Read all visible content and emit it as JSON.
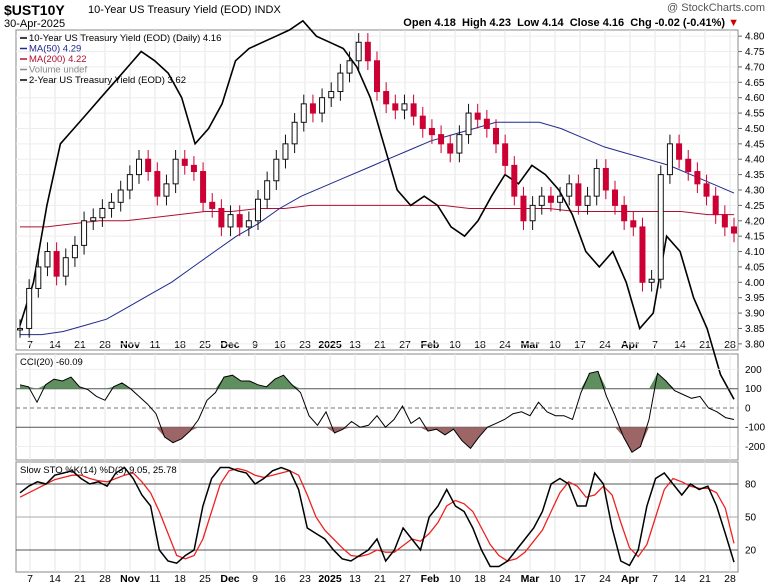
{
  "header": {
    "symbol": "$UST10Y",
    "description": "10-Year US Treasury Yield (EOD)",
    "exchange": "INDX",
    "date": "30-Apr-2025",
    "brand": "@ StockCharts.com",
    "open_label": "Open",
    "open": "4.18",
    "high_label": "High",
    "high": "4.23",
    "low_label": "Low",
    "low": "4.14",
    "close_label": "Close",
    "close": "4.16",
    "chg_label": "Chg",
    "chg": "-0.02 (-0.41%)",
    "down_arrow": "▼"
  },
  "colors": {
    "up": "#111111",
    "down": "#cc0033",
    "ma50": "#1f2a8c",
    "ma200": "#b01030",
    "cci_pos": "#5f8f5f",
    "cci_neg": "#9c6666",
    "sto_k": "#000000",
    "sto_d": "#ee2222"
  },
  "chart_data": [
    {
      "type": "line",
      "title": "10-Year US Treasury Yield (EOD) (Daily) 4.16",
      "legend": [
        {
          "name": "10-Year US Treasury Yield (EOD) (Daily) 4.16",
          "color": "#000000"
        },
        {
          "name": "MA(50) 4.29",
          "color": "#1f2a8c"
        },
        {
          "name": "MA(200) 4.22",
          "color": "#b01030"
        },
        {
          "name": "Volume undef",
          "color": "#888888"
        },
        {
          "name": "2-Year US Treasury Yield (EOD) 3.62",
          "color": "#000000"
        }
      ],
      "ylim": [
        3.78,
        4.82
      ],
      "y_ticks": [
        "4.80",
        "4.75",
        "4.70",
        "4.65",
        "4.60",
        "4.55",
        "4.50",
        "4.45",
        "4.40",
        "4.35",
        "4.30",
        "4.25",
        "4.20",
        "4.15",
        "4.10",
        "4.05",
        "4.00",
        "3.95",
        "3.90",
        "3.85",
        "3.80"
      ],
      "x_tick_labels": [
        "7",
        "14",
        "21",
        "28",
        "Nov",
        "11",
        "18",
        "25",
        "Dec",
        "9",
        "16",
        "23",
        "2025",
        "13",
        "21",
        "27",
        "Feb",
        "10",
        "18",
        "24",
        "Mar",
        "10",
        "17",
        "24",
        "Apr",
        "7",
        "14",
        "21",
        "28"
      ],
      "bold_ticks": [
        "Nov",
        "Dec",
        "2025",
        "Feb",
        "Mar",
        "Apr"
      ],
      "ten_year": [
        3.85,
        3.98,
        4.05,
        4.1,
        4.02,
        4.08,
        4.12,
        4.2,
        4.21,
        4.24,
        4.26,
        4.3,
        4.35,
        4.4,
        4.36,
        4.28,
        4.32,
        4.4,
        4.38,
        4.36,
        4.26,
        4.24,
        4.18,
        4.22,
        4.18,
        4.2,
        4.27,
        4.33,
        4.4,
        4.45,
        4.52,
        4.58,
        4.55,
        4.6,
        4.62,
        4.68,
        4.72,
        4.78,
        4.72,
        4.62,
        4.58,
        4.56,
        4.58,
        4.54,
        4.5,
        4.48,
        4.45,
        4.42,
        4.48,
        4.55,
        4.53,
        4.5,
        4.45,
        4.38,
        4.28,
        4.2,
        4.25,
        4.28,
        4.26,
        4.28,
        4.32,
        4.25,
        4.28,
        4.37,
        4.3,
        4.25,
        4.2,
        4.18,
        4.0,
        4.01,
        4.35,
        4.45,
        4.4,
        4.36,
        4.32,
        4.28,
        4.22,
        4.18,
        4.16
      ],
      "ma50": [
        3.83,
        3.83,
        3.84,
        3.86,
        3.88,
        3.92,
        3.96,
        4.0,
        4.05,
        4.1,
        4.15,
        4.19,
        4.24,
        4.28,
        4.31,
        4.34,
        4.37,
        4.4,
        4.43,
        4.46,
        4.48,
        4.5,
        4.52,
        4.52,
        4.52,
        4.5,
        4.47,
        4.44,
        4.42,
        4.4,
        4.38,
        4.35,
        4.32,
        4.29
      ],
      "ma200": [
        4.18,
        4.18,
        4.19,
        4.2,
        4.2,
        4.21,
        4.22,
        4.23,
        4.23,
        4.24,
        4.24,
        4.25,
        4.25,
        4.25,
        4.25,
        4.25,
        4.25,
        4.24,
        4.24,
        4.24,
        4.24,
        4.23,
        4.23,
        4.23,
        4.23,
        4.23,
        4.22,
        4.22
      ],
      "two_year": [
        3.86,
        4.0,
        4.25,
        4.45,
        4.5,
        4.55,
        4.6,
        4.65,
        4.7,
        4.75,
        4.72,
        4.68,
        4.6,
        4.45,
        4.5,
        4.58,
        4.72,
        4.76,
        4.78,
        4.8,
        4.82,
        4.85,
        4.8,
        4.78,
        4.76,
        4.7,
        4.6,
        4.45,
        4.3,
        4.25,
        4.28,
        4.25,
        4.18,
        4.15,
        4.2,
        4.28,
        4.35,
        4.32,
        4.38,
        4.35,
        4.3,
        4.22,
        4.1,
        4.05,
        4.1,
        4.0,
        3.85,
        3.9,
        4.15,
        4.1,
        3.95,
        3.85,
        3.7,
        3.62
      ]
    },
    {
      "type": "line",
      "title": "CCI(20) -60.09",
      "ylim": [
        -270,
        280
      ],
      "y_ticks": [
        "200",
        "100",
        "0",
        "-100",
        "-200"
      ],
      "values": [
        120,
        110,
        30,
        120,
        150,
        140,
        160,
        110,
        95,
        60,
        40,
        110,
        130,
        100,
        60,
        20,
        -30,
        -150,
        -180,
        -160,
        -120,
        -60,
        40,
        80,
        160,
        170,
        140,
        140,
        120,
        110,
        150,
        170,
        120,
        80,
        -40,
        -90,
        -20,
        -130,
        -110,
        -70,
        -100,
        -90,
        -40,
        -100,
        -60,
        10,
        -80,
        -50,
        -120,
        -110,
        -140,
        -110,
        -170,
        -210,
        -150,
        -100,
        -80,
        -60,
        -30,
        -20,
        -40,
        30,
        -20,
        -40,
        -40,
        -60,
        80,
        180,
        190,
        60,
        -40,
        -150,
        -230,
        -200,
        -60,
        180,
        140,
        90,
        70,
        50,
        60,
        0,
        -20,
        -50,
        -60
      ]
    },
    {
      "type": "line",
      "title": "Slow STO %K(14) %D(3) 9.05, 25.78",
      "ylim": [
        0,
        100
      ],
      "y_ticks": [
        "80",
        "50",
        "20"
      ],
      "k_values": [
        72,
        78,
        82,
        80,
        88,
        90,
        92,
        85,
        80,
        82,
        78,
        90,
        95,
        85,
        70,
        60,
        20,
        10,
        8,
        15,
        20,
        60,
        85,
        95,
        95,
        92,
        90,
        80,
        85,
        92,
        95,
        92,
        75,
        40,
        35,
        30,
        20,
        12,
        10,
        15,
        20,
        30,
        10,
        20,
        40,
        30,
        20,
        50,
        60,
        75,
        60,
        55,
        40,
        20,
        5,
        5,
        10,
        20,
        30,
        40,
        55,
        80,
        85,
        80,
        60,
        60,
        90,
        80,
        40,
        10,
        6,
        20,
        60,
        85,
        90,
        80,
        70,
        80,
        75,
        78,
        60,
        35,
        9
      ],
      "d_values": [
        68,
        72,
        76,
        80,
        84,
        86,
        88,
        88,
        85,
        83,
        82,
        85,
        88,
        90,
        82,
        72,
        55,
        35,
        15,
        12,
        15,
        30,
        55,
        80,
        92,
        94,
        92,
        88,
        86,
        88,
        90,
        92,
        88,
        70,
        50,
        38,
        30,
        22,
        15,
        14,
        16,
        20,
        18,
        18,
        24,
        30,
        28,
        35,
        45,
        60,
        65,
        62,
        55,
        40,
        25,
        15,
        10,
        12,
        18,
        28,
        38,
        55,
        72,
        82,
        78,
        68,
        70,
        78,
        70,
        45,
        22,
        14,
        25,
        50,
        75,
        85,
        82,
        78,
        76,
        76,
        72,
        58,
        26
      ]
    }
  ]
}
